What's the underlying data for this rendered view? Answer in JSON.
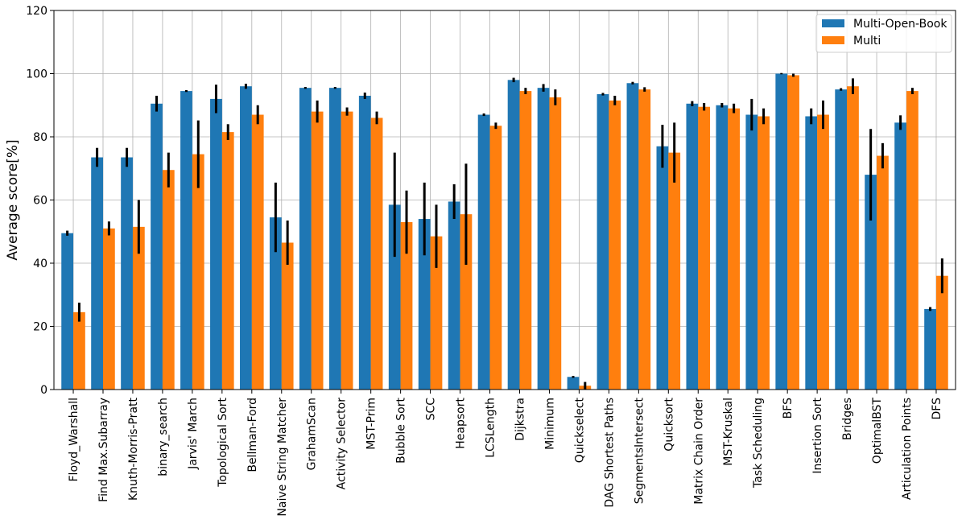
{
  "chart_data": {
    "type": "bar",
    "title": "",
    "xlabel": "",
    "ylabel": "Average score[%]",
    "ylim": [
      0,
      120
    ],
    "yticks": [
      "0",
      "20",
      "40",
      "60",
      "80",
      "100",
      "120"
    ],
    "grid": true,
    "legend_position": "top-right",
    "categories": [
      "Floyd_Warshall",
      "Find Max.Subarray",
      "Knuth-Morris-Pratt",
      "binary_search",
      "Jarvis' March",
      "Topological Sort",
      "Bellman-Ford",
      "Naive String Matcher",
      "GrahamScan",
      "Activity Selector",
      "MST-Prim",
      "Bubble Sort",
      "SCC",
      "Heapsort",
      "LCSLength",
      "Dijkstra",
      "Minimum",
      "Quickselect",
      "DAG Shortest Paths",
      "SegmentsIntersect",
      "Quicksort",
      "Matrix Chain Order",
      "MST-Kruskal",
      "Task Scheduling",
      "BFS",
      "Insertion Sort",
      "Bridges",
      "OptimalBST",
      "Articulation Points",
      "DFS"
    ],
    "series": [
      {
        "name": "Multi-Open-Book",
        "color": "#1f77b4",
        "values": [
          49.5,
          73.5,
          73.5,
          90.5,
          94.5,
          92.0,
          96.0,
          54.5,
          95.5,
          95.5,
          93.0,
          58.5,
          54.0,
          59.5,
          87.0,
          98.0,
          95.5,
          4.0,
          93.5,
          97.0,
          77.0,
          90.5,
          90.0,
          87.0,
          100.0,
          86.5,
          95.0,
          68.0,
          84.5,
          25.5
        ],
        "errors": [
          0.8,
          3.0,
          3.0,
          2.5,
          0.3,
          4.5,
          0.8,
          11.0,
          0.3,
          0.3,
          1.0,
          16.5,
          11.5,
          5.5,
          0.4,
          0.7,
          1.2,
          0.3,
          0.4,
          0.4,
          6.8,
          0.8,
          0.7,
          5.0,
          0.2,
          2.5,
          0.4,
          14.5,
          2.3,
          0.6
        ]
      },
      {
        "name": "Multi",
        "color": "#ff7f0e",
        "values": [
          24.5,
          51.0,
          51.5,
          69.5,
          74.5,
          81.5,
          87.0,
          46.5,
          88.0,
          88.0,
          86.0,
          53.0,
          48.5,
          55.5,
          83.5,
          94.5,
          92.5,
          1.2,
          91.5,
          95.0,
          75.0,
          89.5,
          89.0,
          86.5,
          99.5,
          87.0,
          96.0,
          74.0,
          94.5,
          36.0
        ]
      }
    ],
    "multi_errors": [
      3.0,
      2.2,
      8.5,
      5.5,
      10.7,
      2.5,
      3.0,
      7.0,
      3.5,
      1.3,
      2.0,
      10.0,
      10.0,
      16.0,
      1.0,
      1.0,
      2.5,
      1.2,
      1.5,
      0.7,
      9.5,
      1.2,
      1.5,
      2.5,
      0.5,
      4.5,
      2.5,
      4.0,
      1.0,
      5.5
    ]
  }
}
